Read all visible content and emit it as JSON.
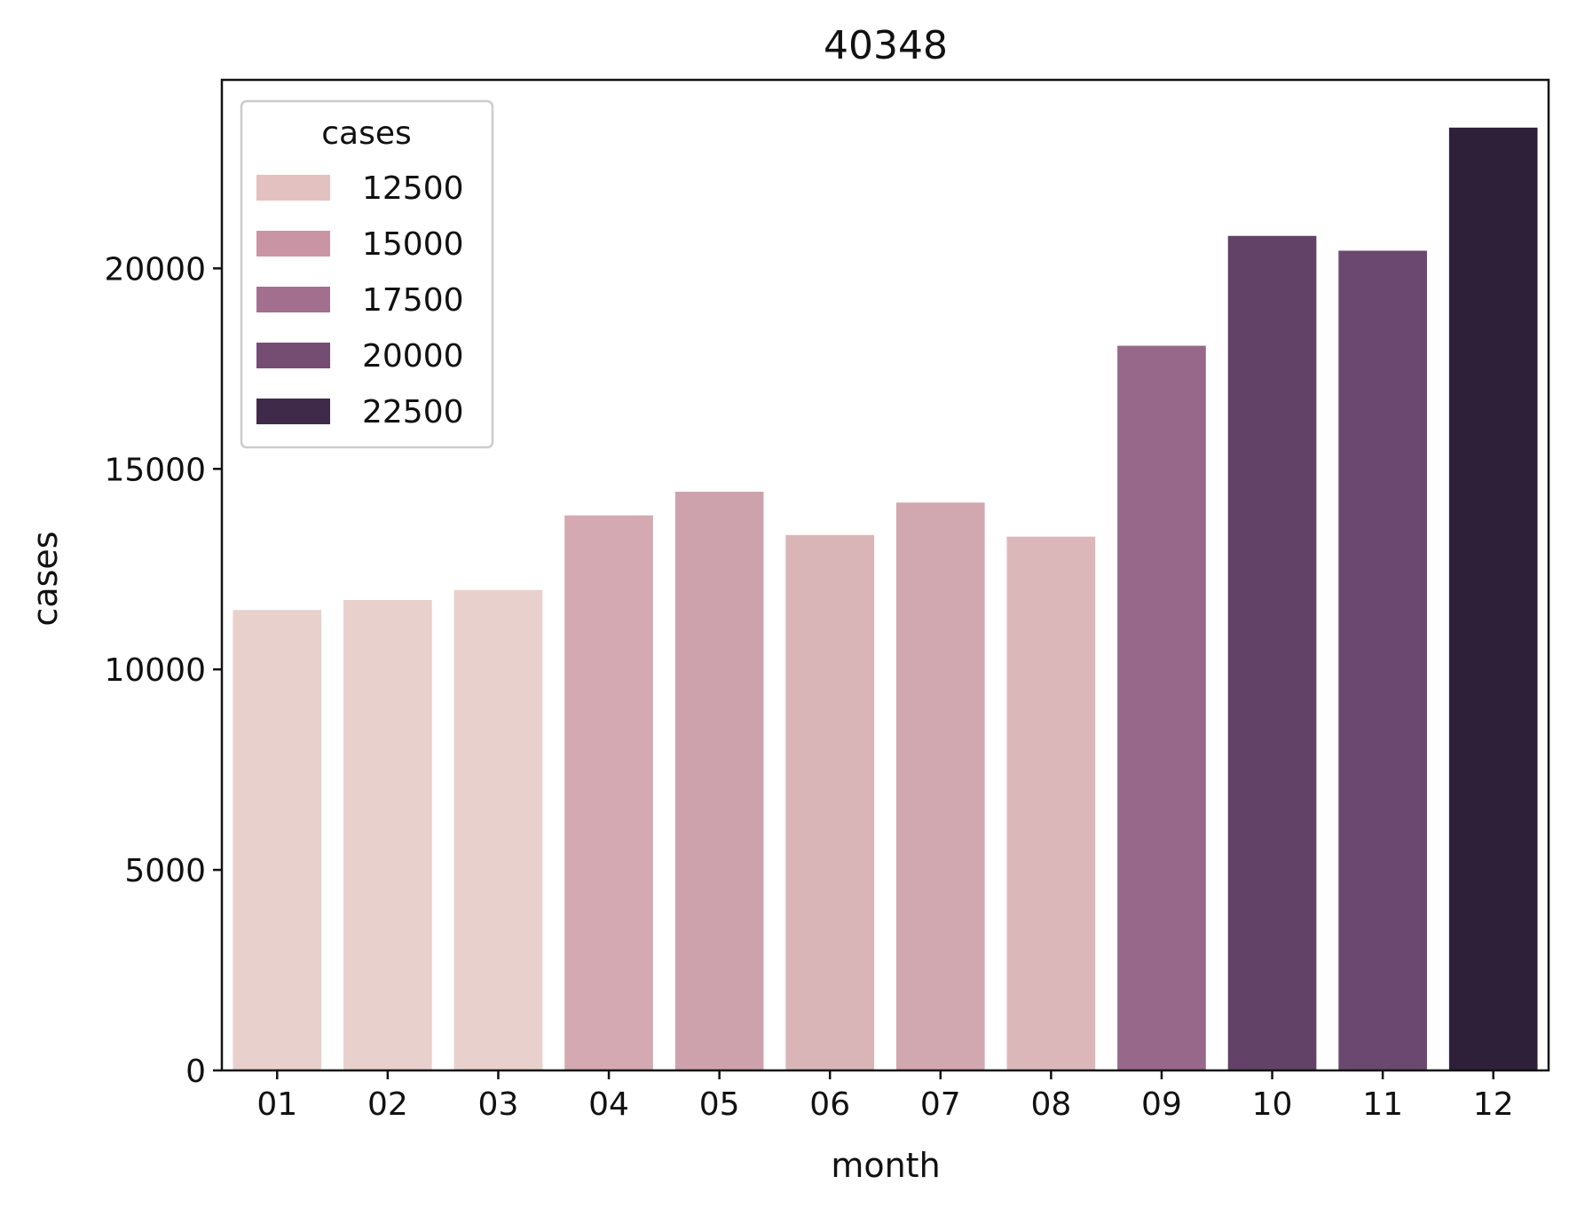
{
  "chart_data": {
    "type": "bar",
    "title": "40348",
    "xlabel": "month",
    "ylabel": "cases",
    "categories": [
      "01",
      "02",
      "03",
      "04",
      "05",
      "06",
      "07",
      "08",
      "09",
      "10",
      "11",
      "12"
    ],
    "values": [
      11480,
      11730,
      11980,
      13840,
      14430,
      13350,
      14160,
      13310,
      18070,
      20810,
      20440,
      23510
    ],
    "bar_colors": [
      "#e8d0cc",
      "#e8d0cc",
      "#e8d0cc",
      "#d4a9b2",
      "#cea2ad",
      "#d9b5b8",
      "#d1a7b0",
      "#dbb7ba",
      "#97688a",
      "#634268",
      "#6b4870",
      "#2e2038"
    ],
    "ylim": [
      0,
      24700
    ],
    "yticks": [
      0,
      5000,
      10000,
      15000,
      20000
    ],
    "ytick_labels": [
      "0",
      "5000",
      "10000",
      "15000",
      "20000"
    ],
    "grid": false,
    "legend": {
      "title": "cases",
      "placement": "top-left",
      "entries": [
        {
          "label": "12500",
          "color": "#e3c1c1"
        },
        {
          "label": "15000",
          "color": "#c995a5"
        },
        {
          "label": "17500",
          "color": "#a2708e"
        },
        {
          "label": "20000",
          "color": "#754c72"
        },
        {
          "label": "22500",
          "color": "#3f2a49"
        }
      ]
    }
  }
}
